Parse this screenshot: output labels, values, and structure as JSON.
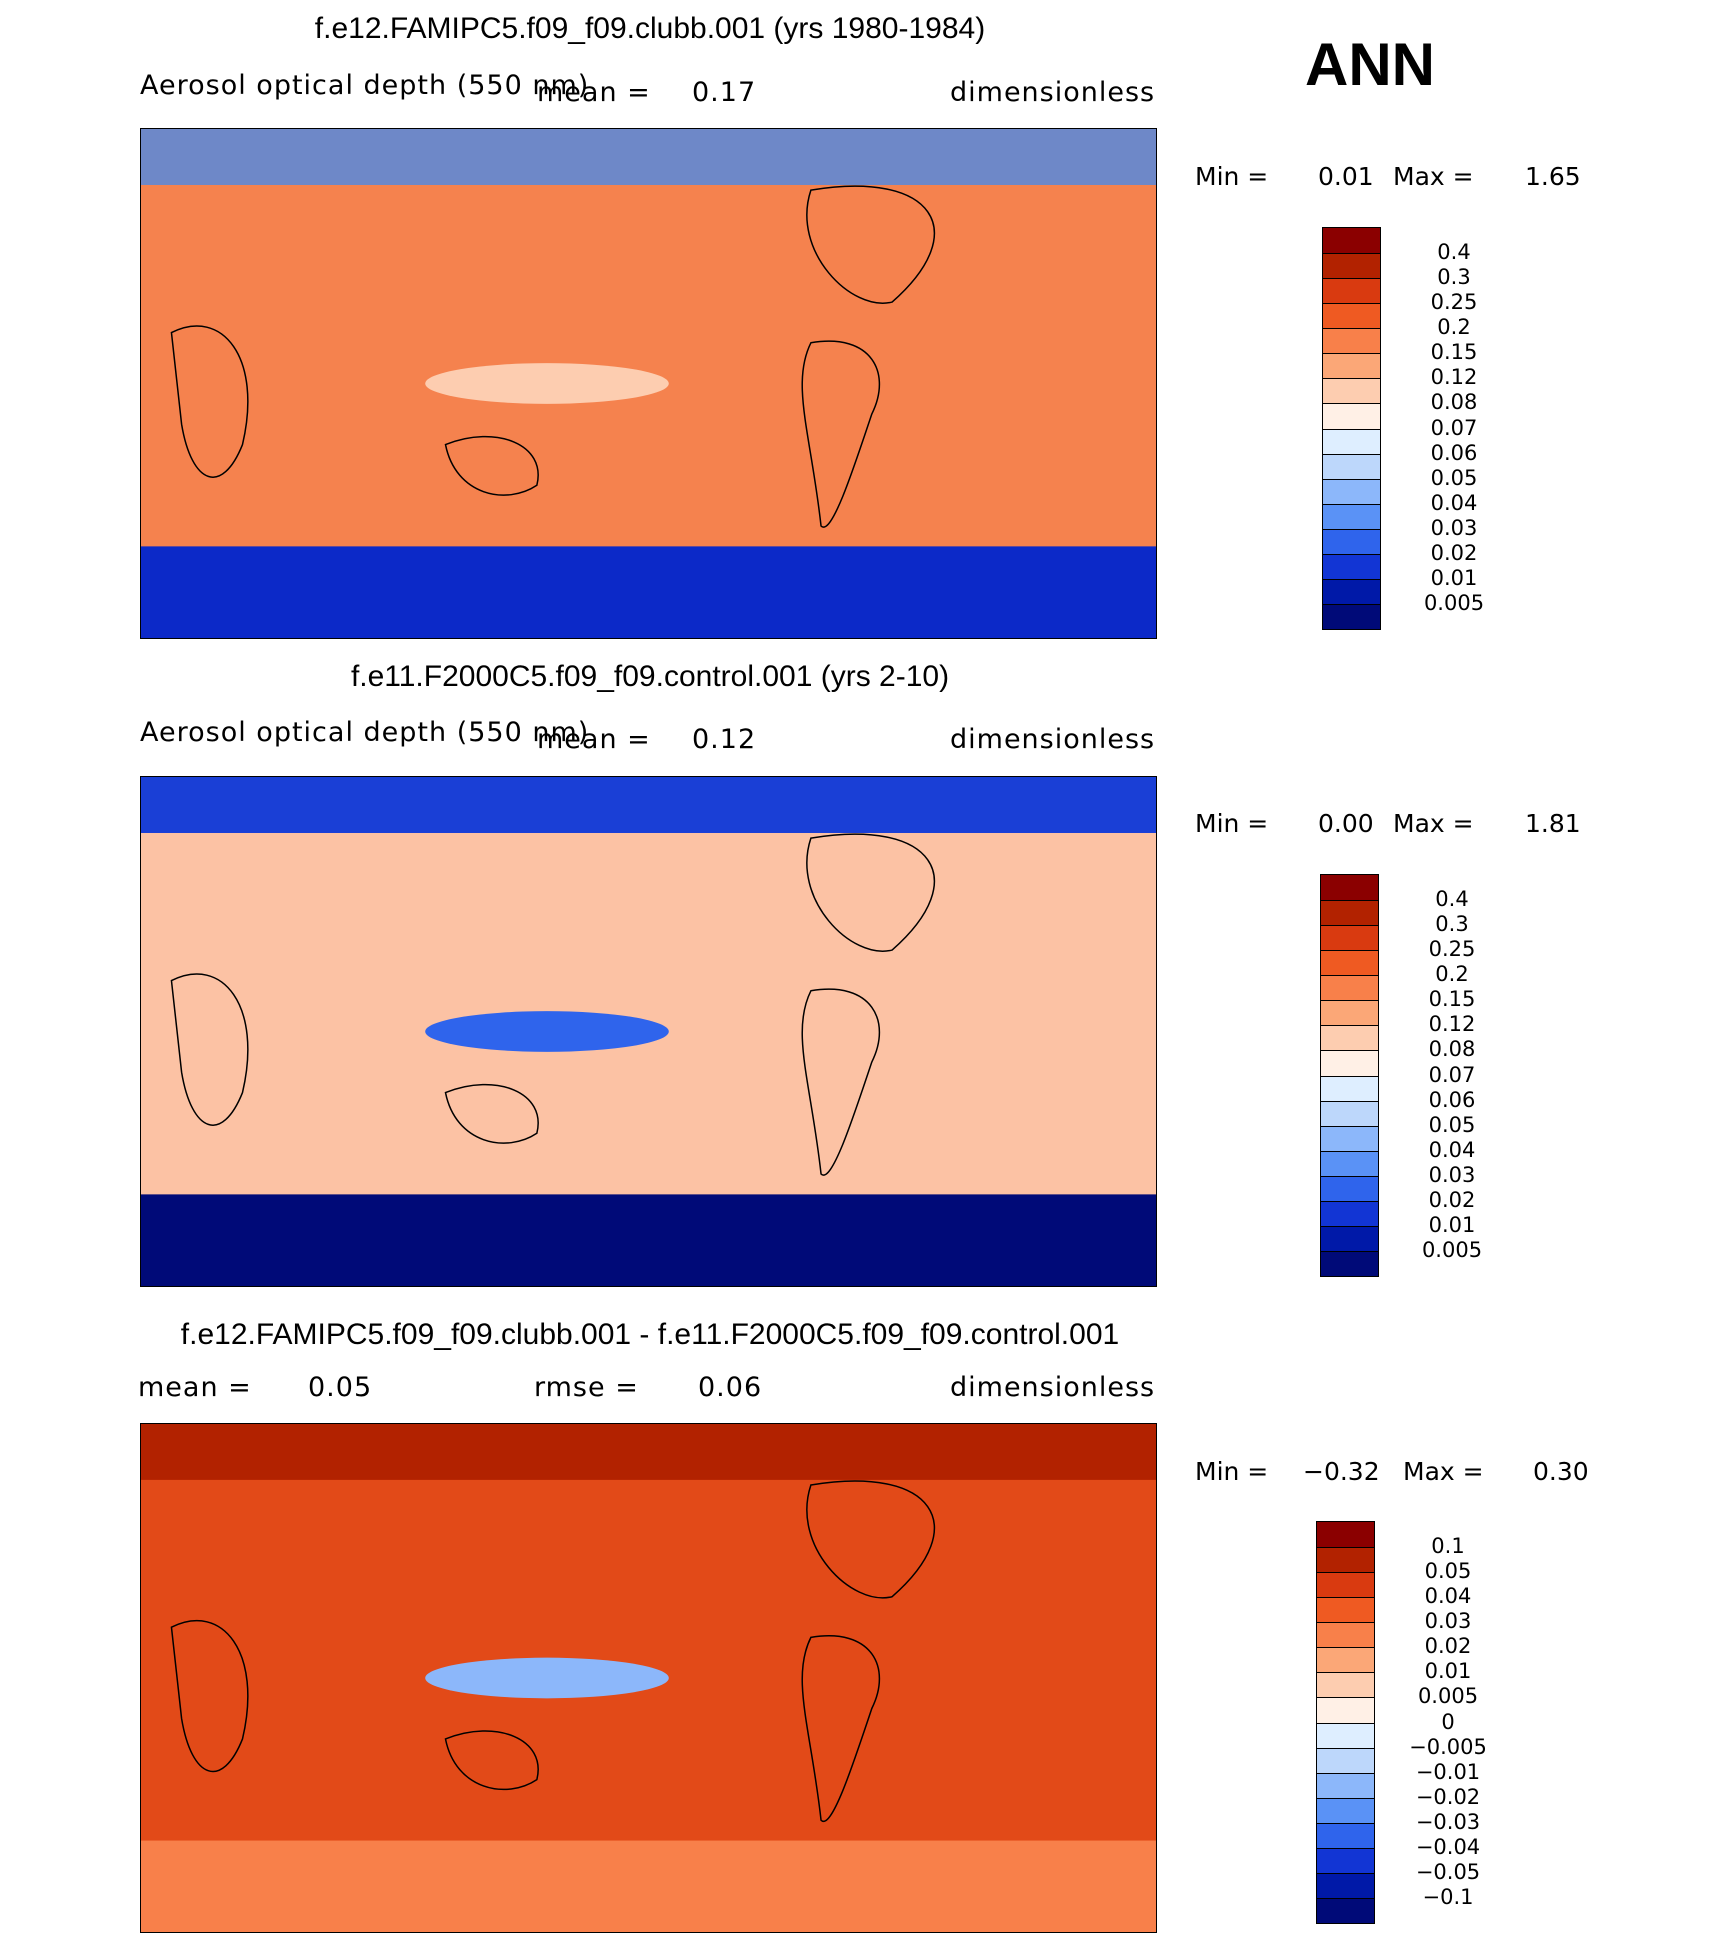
{
  "season": "ANN",
  "panels": [
    {
      "title": "f.e12.FAMIPC5.f09_f09.clubb.001 (yrs 1980-1984)",
      "variable": "Aerosol optical depth (550 nm)",
      "stat1_label": "mean =",
      "stat1_value": "0.17",
      "stat2_label": "",
      "stat2_value": "",
      "units": "dimensionless",
      "min_label": "Min =",
      "min_value": "0.01",
      "max_label": "Max =",
      "max_value": "1.65",
      "colorbar": {
        "ticks": [
          "0.4",
          "0.3",
          "0.25",
          "0.2",
          "0.15",
          "0.12",
          "0.08",
          "0.07",
          "0.06",
          "0.05",
          "0.04",
          "0.03",
          "0.02",
          "0.01",
          "0.005"
        ],
        "colors": [
          "#8b0000",
          "#b22200",
          "#d93a10",
          "#ef5a22",
          "#f8804a",
          "#fba777",
          "#fdcdb0",
          "#fff0e6",
          "#deeeff",
          "#bdd7fb",
          "#8cb7fa",
          "#5a92f6",
          "#2f64ec",
          "#1235d4",
          "#0019a8",
          "#000a78"
        ]
      },
      "field": {
        "background": "#f5824e",
        "blobs": [
          {
            "c": "#6e88c8",
            "shape": "band_n"
          },
          {
            "c": "#0c29c8",
            "shape": "band_s"
          },
          {
            "c": "#fdcdb0",
            "shape": "eq"
          }
        ]
      }
    },
    {
      "title": "f.e11.F2000C5.f09_f09.control.001 (yrs 2-10)",
      "variable": "Aerosol optical depth (550 nm)",
      "stat1_label": "mean =",
      "stat1_value": "0.12",
      "stat2_label": "",
      "stat2_value": "",
      "units": "dimensionless",
      "min_label": "Min =",
      "min_value": "0.00",
      "max_label": "Max =",
      "max_value": "1.81",
      "colorbar": {
        "ticks": [
          "0.4",
          "0.3",
          "0.25",
          "0.2",
          "0.15",
          "0.12",
          "0.08",
          "0.07",
          "0.06",
          "0.05",
          "0.04",
          "0.03",
          "0.02",
          "0.01",
          "0.005"
        ],
        "colors": [
          "#8b0000",
          "#b22200",
          "#d93a10",
          "#ef5a22",
          "#f8804a",
          "#fba777",
          "#fdcdb0",
          "#fff0e6",
          "#deeeff",
          "#bdd7fb",
          "#8cb7fa",
          "#5a92f6",
          "#2f64ec",
          "#1235d4",
          "#0019a8",
          "#000a78"
        ]
      },
      "field": {
        "background": "#fcc2a4",
        "blobs": [
          {
            "c": "#1a3fd6",
            "shape": "band_n"
          },
          {
            "c": "#000a78",
            "shape": "band_s"
          },
          {
            "c": "#2f64ec",
            "shape": "eq"
          }
        ]
      }
    },
    {
      "title": "f.e12.FAMIPC5.f09_f09.clubb.001 - f.e11.F2000C5.f09_f09.control.001",
      "variable": "",
      "stat1_label": "mean =",
      "stat1_value": "0.05",
      "stat2_label": "rmse =",
      "stat2_value": "0.06",
      "units": "dimensionless",
      "min_label": "Min =",
      "min_value": "−0.32",
      "max_label": "Max =",
      "max_value": "0.30",
      "colorbar": {
        "ticks": [
          "0.1",
          "0.05",
          "0.04",
          "0.03",
          "0.02",
          "0.01",
          "0.005",
          "0",
          "−0.005",
          "−0.01",
          "−0.02",
          "−0.03",
          "−0.04",
          "−0.05",
          "−0.1"
        ],
        "colors": [
          "#8b0000",
          "#b22200",
          "#d93a10",
          "#ef5a22",
          "#f8804a",
          "#fba777",
          "#fdcdb0",
          "#fff0e6",
          "#deeeff",
          "#bdd7fb",
          "#8cb7fa",
          "#5a92f6",
          "#2f64ec",
          "#1235d4",
          "#0019a8",
          "#000a78"
        ]
      },
      "field": {
        "background": "#e24a18",
        "blobs": [
          {
            "c": "#f8804a",
            "shape": "band_s"
          },
          {
            "c": "#8cb7fa",
            "shape": "eq"
          },
          {
            "c": "#b22200",
            "shape": "band_n"
          }
        ]
      }
    }
  ]
}
